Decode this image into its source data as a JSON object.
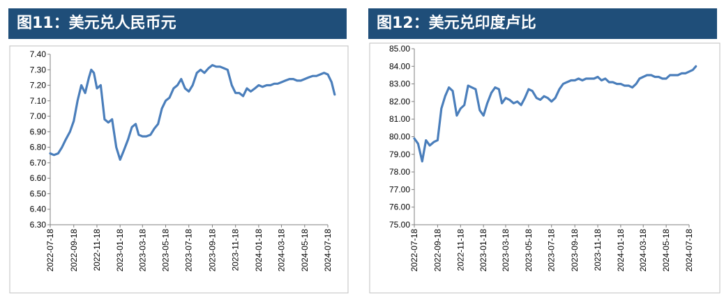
{
  "chart_data": [
    {
      "type": "line",
      "title": "图11：美元兑人民币元",
      "ylim": [
        6.3,
        7.4
      ],
      "yticks": [
        "7.40",
        "7.30",
        "7.20",
        "7.10",
        "7.00",
        "6.90",
        "6.80",
        "6.70",
        "6.60",
        "6.50",
        "6.40",
        "6.30"
      ],
      "xticks": [
        "2022-07-18",
        "2022-09-18",
        "2022-11-18",
        "2023-01-18",
        "2023-03-18",
        "2023-05-18",
        "2023-07-18",
        "2023-09-18",
        "2023-11-18",
        "2024-01-18",
        "2024-03-18",
        "2024-05-18",
        "2024-07-18"
      ],
      "color": "#4a7ebb",
      "series": [
        {
          "x": [
            "2022-07-18",
            "2022-07-28",
            "2022-08-08",
            "2022-08-18",
            "2022-08-28",
            "2022-09-08",
            "2022-09-18",
            "2022-09-28",
            "2022-10-08",
            "2022-10-18",
            "2022-10-28",
            "2022-11-03",
            "2022-11-10",
            "2022-11-18",
            "2022-11-28",
            "2022-12-08",
            "2022-12-18",
            "2022-12-28",
            "2023-01-08",
            "2023-01-18",
            "2023-01-28",
            "2023-02-08",
            "2023-02-18",
            "2023-02-28",
            "2023-03-08",
            "2023-03-18",
            "2023-03-28",
            "2023-04-08",
            "2023-04-18",
            "2023-04-28",
            "2023-05-08",
            "2023-05-18",
            "2023-05-28",
            "2023-06-08",
            "2023-06-18",
            "2023-06-28",
            "2023-07-08",
            "2023-07-18",
            "2023-07-28",
            "2023-08-08",
            "2023-08-18",
            "2023-08-28",
            "2023-09-08",
            "2023-09-18",
            "2023-09-28",
            "2023-10-08",
            "2023-10-18",
            "2023-10-28",
            "2023-11-08",
            "2023-11-18",
            "2023-11-28",
            "2023-12-08",
            "2023-12-18",
            "2023-12-28",
            "2024-01-08",
            "2024-01-18",
            "2024-01-28",
            "2024-02-08",
            "2024-02-18",
            "2024-02-28",
            "2024-03-08",
            "2024-03-18",
            "2024-03-28",
            "2024-04-08",
            "2024-04-18",
            "2024-04-28",
            "2024-05-08",
            "2024-05-18",
            "2024-05-28",
            "2024-06-08",
            "2024-06-18",
            "2024-06-28",
            "2024-07-08",
            "2024-07-18",
            "2024-07-28",
            "2024-08-05"
          ],
          "y": [
            6.76,
            6.75,
            6.76,
            6.8,
            6.85,
            6.9,
            6.97,
            7.1,
            7.2,
            7.15,
            7.25,
            7.3,
            7.28,
            7.18,
            7.2,
            6.98,
            6.96,
            6.98,
            6.8,
            6.72,
            6.78,
            6.85,
            6.93,
            6.95,
            6.88,
            6.87,
            6.87,
            6.88,
            6.92,
            6.95,
            7.05,
            7.1,
            7.12,
            7.18,
            7.2,
            7.24,
            7.18,
            7.16,
            7.2,
            7.28,
            7.3,
            7.28,
            7.31,
            7.33,
            7.32,
            7.32,
            7.31,
            7.3,
            7.2,
            7.15,
            7.15,
            7.13,
            7.18,
            7.16,
            7.18,
            7.2,
            7.19,
            7.2,
            7.2,
            7.21,
            7.21,
            7.22,
            7.23,
            7.24,
            7.24,
            7.23,
            7.23,
            7.24,
            7.25,
            7.26,
            7.26,
            7.27,
            7.28,
            7.27,
            7.22,
            7.14
          ]
        }
      ]
    },
    {
      "type": "line",
      "title": "图12：美元兑印度卢比",
      "ylim": [
        75.0,
        85.0
      ],
      "yticks": [
        "85.00",
        "84.00",
        "83.00",
        "82.00",
        "81.00",
        "80.00",
        "79.00",
        "78.00",
        "77.00",
        "76.00",
        "75.00"
      ],
      "xticks": [
        "2022-07-18",
        "2022-09-18",
        "2022-11-18",
        "2023-01-18",
        "2023-03-18",
        "2023-05-18",
        "2023-07-18",
        "2023-09-18",
        "2023-11-18",
        "2024-01-18",
        "2024-03-18",
        "2024-05-18",
        "2024-07-18"
      ],
      "color": "#4a7ebb",
      "series": [
        {
          "x": [
            "2022-07-18",
            "2022-07-28",
            "2022-08-08",
            "2022-08-18",
            "2022-08-28",
            "2022-09-08",
            "2022-09-18",
            "2022-09-28",
            "2022-10-08",
            "2022-10-18",
            "2022-10-28",
            "2022-11-08",
            "2022-11-18",
            "2022-11-28",
            "2022-12-08",
            "2022-12-18",
            "2022-12-28",
            "2023-01-08",
            "2023-01-18",
            "2023-01-28",
            "2023-02-08",
            "2023-02-18",
            "2023-02-28",
            "2023-03-08",
            "2023-03-18",
            "2023-03-28",
            "2023-04-08",
            "2023-04-18",
            "2023-04-28",
            "2023-05-08",
            "2023-05-18",
            "2023-05-28",
            "2023-06-08",
            "2023-06-18",
            "2023-06-28",
            "2023-07-08",
            "2023-07-18",
            "2023-07-28",
            "2023-08-08",
            "2023-08-18",
            "2023-08-28",
            "2023-09-08",
            "2023-09-18",
            "2023-09-28",
            "2023-10-08",
            "2023-10-18",
            "2023-10-28",
            "2023-11-08",
            "2023-11-18",
            "2023-11-28",
            "2023-12-08",
            "2023-12-18",
            "2023-12-28",
            "2024-01-08",
            "2024-01-18",
            "2024-01-28",
            "2024-02-08",
            "2024-02-18",
            "2024-02-28",
            "2024-03-08",
            "2024-03-18",
            "2024-03-28",
            "2024-04-08",
            "2024-04-18",
            "2024-04-28",
            "2024-05-08",
            "2024-05-18",
            "2024-05-28",
            "2024-06-08",
            "2024-06-18",
            "2024-06-28",
            "2024-07-08",
            "2024-07-18",
            "2024-07-28",
            "2024-08-05"
          ],
          "y": [
            79.9,
            79.6,
            78.6,
            79.8,
            79.5,
            79.7,
            79.8,
            81.6,
            82.3,
            82.8,
            82.6,
            81.2,
            81.6,
            81.8,
            82.9,
            82.8,
            82.7,
            81.5,
            81.2,
            81.9,
            82.5,
            82.8,
            82.7,
            81.9,
            82.2,
            82.1,
            81.9,
            82.0,
            81.8,
            82.2,
            82.7,
            82.6,
            82.2,
            82.1,
            82.3,
            82.2,
            82.0,
            82.2,
            82.7,
            83.0,
            83.1,
            83.2,
            83.2,
            83.3,
            83.2,
            83.3,
            83.3,
            83.3,
            83.4,
            83.2,
            83.3,
            83.1,
            83.1,
            83.0,
            83.0,
            82.9,
            82.9,
            82.8,
            83.0,
            83.3,
            83.4,
            83.5,
            83.5,
            83.4,
            83.4,
            83.3,
            83.3,
            83.5,
            83.5,
            83.5,
            83.6,
            83.6,
            83.7,
            83.8,
            84.0
          ]
        }
      ]
    }
  ]
}
